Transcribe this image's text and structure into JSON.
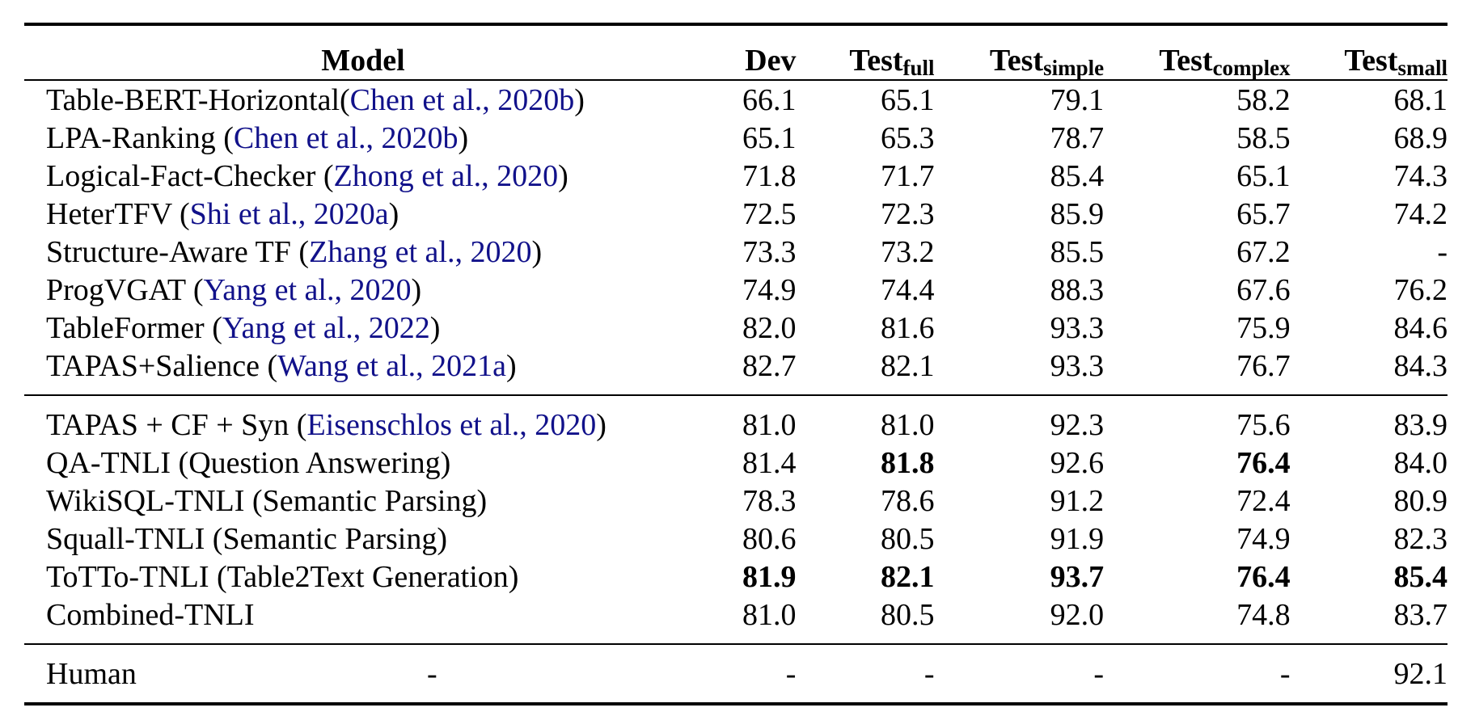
{
  "table": {
    "header": {
      "model": "Model",
      "dev": "Dev",
      "test_base": "Test",
      "full_sub": "full",
      "simple_sub": "simple",
      "complex_sub": "complex",
      "small_sub": "small"
    },
    "group1": [
      {
        "name": "Table-BERT-Horizontal(",
        "cite": "Chen et al., 2020b",
        "close": ")",
        "dev": "66.1",
        "full": "65.1",
        "simple": "79.1",
        "complex": "58.2",
        "small": "68.1"
      },
      {
        "name": "LPA-Ranking (",
        "cite": "Chen et al., 2020b",
        "close": ")",
        "dev": "65.1",
        "full": "65.3",
        "simple": "78.7",
        "complex": "58.5",
        "small": "68.9"
      },
      {
        "name": "Logical-Fact-Checker (",
        "cite": "Zhong et al., 2020",
        "close": ")",
        "dev": "71.8",
        "full": "71.7",
        "simple": "85.4",
        "complex": "65.1",
        "small": "74.3"
      },
      {
        "name": "HeterTFV (",
        "cite": "Shi et al., 2020a",
        "close": ")",
        "dev": "72.5",
        "full": "72.3",
        "simple": "85.9",
        "complex": "65.7",
        "small": "74.2"
      },
      {
        "name": "Structure-Aware TF (",
        "cite": "Zhang et al., 2020",
        "close": ")",
        "dev": "73.3",
        "full": "73.2",
        "simple": "85.5",
        "complex": "67.2",
        "small": "-"
      },
      {
        "name": "ProgVGAT (",
        "cite": "Yang et al., 2020",
        "close": ")",
        "dev": "74.9",
        "full": "74.4",
        "simple": "88.3",
        "complex": "67.6",
        "small": "76.2"
      },
      {
        "name": "TableFormer (",
        "cite": "Yang et al., 2022",
        "close": ")",
        "dev": "82.0",
        "full": "81.6",
        "simple": "93.3",
        "complex": "75.9",
        "small": "84.6"
      },
      {
        "name": "TAPAS+Salience (",
        "cite": "Wang et al., 2021a",
        "close": ")",
        "dev": "82.7",
        "full": "82.1",
        "simple": "93.3",
        "complex": "76.7",
        "small": "84.3"
      }
    ],
    "group2": [
      {
        "name": "TAPAS + CF + Syn (",
        "cite": "Eisenschlos et al., 2020",
        "close": ")",
        "dev": "81.0",
        "full": "81.0",
        "simple": "92.3",
        "complex": "75.6",
        "small": "83.9"
      },
      {
        "name": "QA-TNLI (Question Answering)",
        "cite": "",
        "close": "",
        "dev": "81.4",
        "full": "81.8",
        "simple": "92.6",
        "complex": "76.4",
        "small": "84.0"
      },
      {
        "name": "WikiSQL-TNLI (Semantic Parsing)",
        "cite": "",
        "close": "",
        "dev": "78.3",
        "full": "78.6",
        "simple": "91.2",
        "complex": "72.4",
        "small": "80.9"
      },
      {
        "name": "Squall-TNLI (Semantic Parsing)",
        "cite": "",
        "close": "",
        "dev": "80.6",
        "full": "80.5",
        "simple": "91.9",
        "complex": "74.9",
        "small": "82.3"
      },
      {
        "name": "ToTTo-TNLI (Table2Text Generation)",
        "cite": "",
        "close": "",
        "dev": "81.9",
        "full": "82.1",
        "simple": "93.7",
        "complex": "76.4",
        "small": "85.4"
      },
      {
        "name": "Combined-TNLI",
        "cite": "",
        "close": "",
        "dev": "81.0",
        "full": "80.5",
        "simple": "92.0",
        "complex": "74.8",
        "small": "83.7"
      }
    ],
    "human": {
      "name": "Human",
      "dash": "-",
      "dev": "-",
      "full": "-",
      "simple": "-",
      "complex": "-",
      "small": "92.1"
    }
  }
}
